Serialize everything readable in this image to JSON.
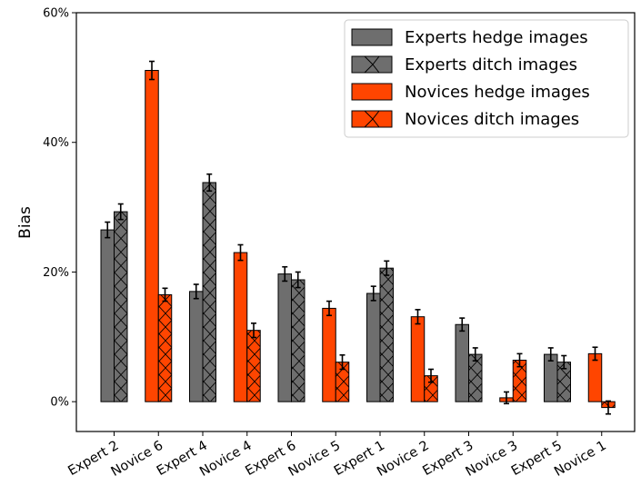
{
  "chart_data": {
    "type": "bar",
    "ylabel": "Bias",
    "xlabel": "",
    "ylim": [
      -4.6,
      60
    ],
    "yticks": [
      0,
      20,
      40,
      60
    ],
    "ytick_labels": [
      "0%",
      "20%",
      "40%",
      "60%"
    ],
    "legend_position": "top-right",
    "grid": false,
    "categories": [
      {
        "label": "Expert 2",
        "group": "Experts",
        "hedge": 26.5,
        "hedge_err": 1.2,
        "ditch": 29.3,
        "ditch_err": 1.2
      },
      {
        "label": "Novice 6",
        "group": "Novices",
        "hedge": 51.1,
        "hedge_err": 1.4,
        "ditch": 16.5,
        "ditch_err": 1.0
      },
      {
        "label": "Expert 4",
        "group": "Experts",
        "hedge": 17.0,
        "hedge_err": 1.1,
        "ditch": 33.8,
        "ditch_err": 1.3
      },
      {
        "label": "Novice 4",
        "group": "Novices",
        "hedge": 23.0,
        "hedge_err": 1.2,
        "ditch": 11.0,
        "ditch_err": 1.1
      },
      {
        "label": "Expert 6",
        "group": "Experts",
        "hedge": 19.7,
        "hedge_err": 1.1,
        "ditch": 18.8,
        "ditch_err": 1.2
      },
      {
        "label": "Novice 5",
        "group": "Novices",
        "hedge": 14.4,
        "hedge_err": 1.1,
        "ditch": 6.1,
        "ditch_err": 1.1
      },
      {
        "label": "Expert 1",
        "group": "Experts",
        "hedge": 16.7,
        "hedge_err": 1.1,
        "ditch": 20.6,
        "ditch_err": 1.1
      },
      {
        "label": "Novice 2",
        "group": "Novices",
        "hedge": 13.1,
        "hedge_err": 1.1,
        "ditch": 4.0,
        "ditch_err": 1.0
      },
      {
        "label": "Expert 3",
        "group": "Experts",
        "hedge": 11.9,
        "hedge_err": 1.0,
        "ditch": 7.3,
        "ditch_err": 1.0
      },
      {
        "label": "Novice 3",
        "group": "Novices",
        "hedge": 0.6,
        "hedge_err": 0.9,
        "ditch": 6.4,
        "ditch_err": 1.0
      },
      {
        "label": "Expert 5",
        "group": "Experts",
        "hedge": 7.3,
        "hedge_err": 1.0,
        "ditch": 6.1,
        "ditch_err": 1.0
      },
      {
        "label": "Novice 1",
        "group": "Novices",
        "hedge": 7.4,
        "hedge_err": 1.0,
        "ditch": -0.9,
        "ditch_err": 1.0
      }
    ],
    "series": [
      {
        "name": "Experts hedge images",
        "group": "Experts",
        "kind": "hedge",
        "color": "#6e6e6e",
        "hatch": false
      },
      {
        "name": "Experts ditch images",
        "group": "Experts",
        "kind": "ditch",
        "color": "#6e6e6e",
        "hatch": true
      },
      {
        "name": "Novices hedge images",
        "group": "Novices",
        "kind": "hedge",
        "color": "#ff4500",
        "hatch": false
      },
      {
        "name": "Novices ditch images",
        "group": "Novices",
        "kind": "ditch",
        "color": "#ff4500",
        "hatch": true
      }
    ]
  }
}
